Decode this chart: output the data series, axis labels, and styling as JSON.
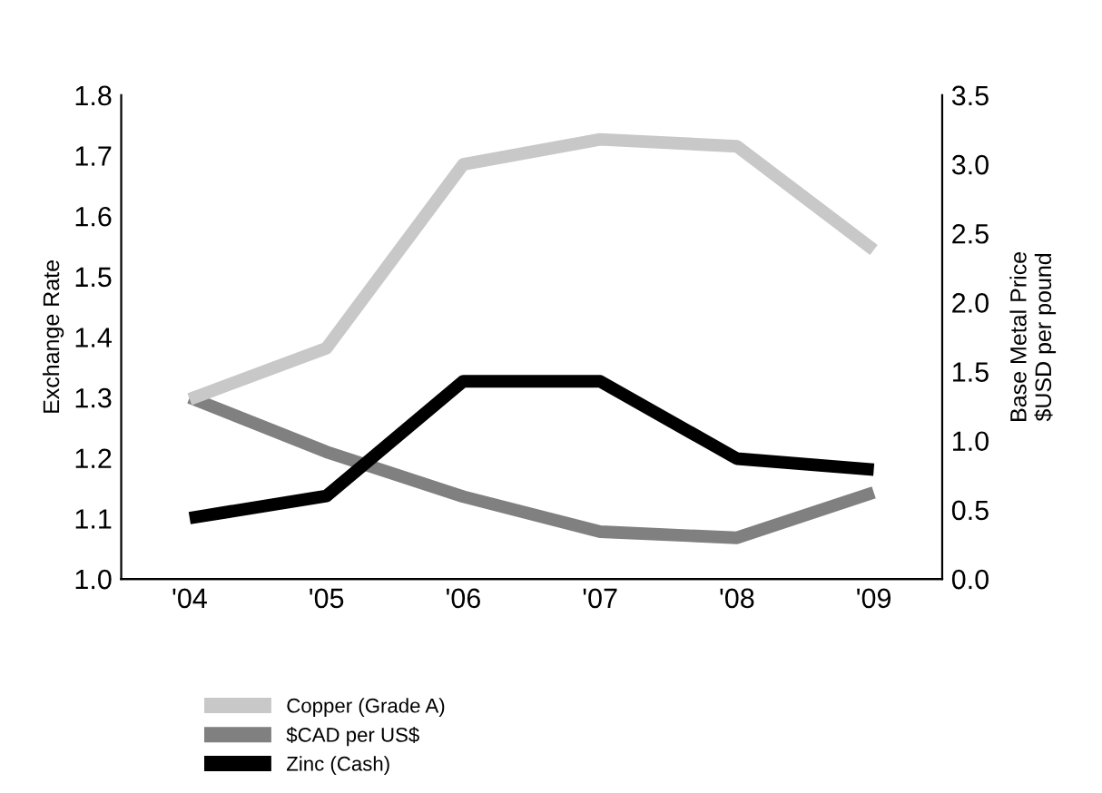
{
  "chart_data": {
    "type": "line",
    "categories": [
      "'04",
      "'05",
      "'06",
      "'07",
      "'08",
      "'09"
    ],
    "series": [
      {
        "name": "Copper (Grade A)",
        "color": "#c8c8c8",
        "axis": "y2",
        "values": [
          1.3,
          1.67,
          3.0,
          3.18,
          3.13,
          2.38
        ]
      },
      {
        "name": "$CAD per US$",
        "color": "#808080",
        "values": [
          1.3,
          1.21,
          1.136,
          1.078,
          1.068,
          1.143
        ]
      },
      {
        "name": "Zinc (Cash)",
        "color": "#000000",
        "axis": "y2",
        "values": [
          0.44,
          0.6,
          1.43,
          1.43,
          0.87,
          0.79
        ]
      }
    ],
    "ylabel": "Exchange Rate",
    "y2label": "Base Metal Price\n$USD per pound",
    "ylim": [
      1.0,
      1.8
    ],
    "yticks": [
      {
        "value": 1.0,
        "label": "1.0"
      },
      1.1,
      1.2,
      1.3,
      1.4,
      1.5,
      1.6,
      1.7,
      1.8
    ],
    "y2lim": [
      0.0,
      3.5
    ],
    "y2ticks": [
      {
        "value": 0.0,
        "label": "0.0"
      },
      0.5,
      {
        "value": 1.0,
        "label": "1.0"
      },
      1.5,
      {
        "value": 2.0,
        "label": "2.0"
      },
      2.5,
      {
        "value": 3.0,
        "label": "3.0"
      },
      3.5
    ],
    "legend": "bottom",
    "grid": false,
    "marker": "none",
    "line_style": "solid"
  }
}
